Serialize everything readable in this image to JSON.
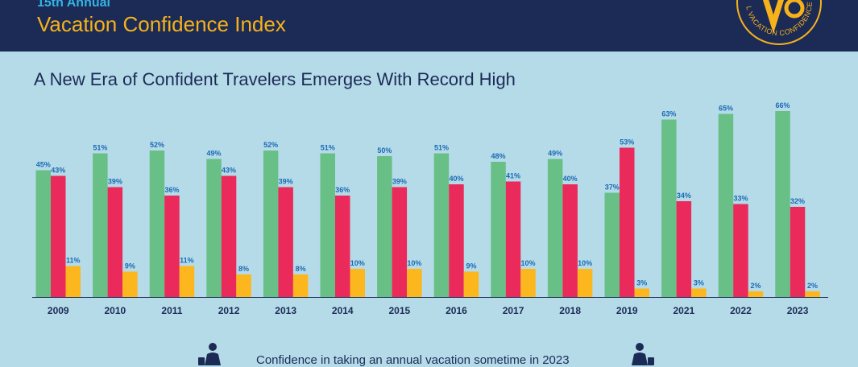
{
  "header": {
    "supertitle": "15th Annual",
    "title": "Vacation Confidence Index",
    "seal_text": "L VACATION CONFIDENCE",
    "colors": {
      "background": "#1c2b55",
      "supertitle": "#33b3e6",
      "title": "#f6b21b"
    }
  },
  "chart_data": {
    "type": "bar",
    "title": "A New Era of Confident Travelers Emerges With Record High",
    "categories": [
      "2009",
      "2010",
      "2011",
      "2012",
      "2013",
      "2014",
      "2015",
      "2016",
      "2017",
      "2018",
      "2019",
      "2021",
      "2022",
      "2023"
    ],
    "series": [
      {
        "color": "#68c086",
        "values": [
          45,
          51,
          52,
          49,
          52,
          51,
          50,
          51,
          48,
          49,
          37,
          63,
          65,
          66
        ],
        "labels": [
          "45%",
          "51%",
          "52%",
          "49%",
          "52%",
          "51%",
          "50%",
          "51%",
          "48%",
          "49%",
          "37%",
          "63%",
          "65%",
          "66%"
        ]
      },
      {
        "color": "#ea2a5a",
        "values": [
          43,
          39,
          36,
          43,
          39,
          36,
          39,
          40,
          41,
          40,
          53,
          34,
          33,
          32
        ],
        "labels": [
          "43%",
          "39%",
          "36%",
          "43%",
          "39%",
          "36%",
          "39%",
          "40%",
          "41%",
          "40%",
          "53%",
          "34%",
          "33%",
          "32%"
        ]
      },
      {
        "color": "#fcb61e",
        "values": [
          11,
          9,
          11,
          8,
          8,
          10,
          10,
          9,
          10,
          10,
          3,
          3,
          2,
          2
        ],
        "labels": [
          "11%",
          "9%",
          "11%",
          "8%",
          "8%",
          "10%",
          "10%",
          "9%",
          "10%",
          "10%",
          "3%",
          "3%",
          "2%",
          "2%"
        ]
      }
    ],
    "ylim": [
      0,
      70
    ],
    "grid": false,
    "legend": "none"
  },
  "footer": {
    "text": "Confidence in taking an annual vacation sometime in 2023",
    "icon": "traveler-with-suitcase-icon"
  }
}
